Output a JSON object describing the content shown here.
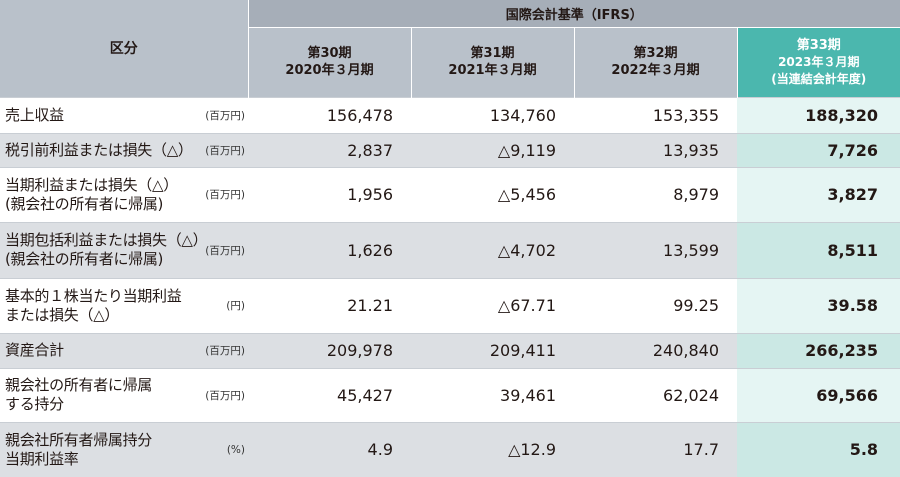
{
  "header": {
    "kubun": "区分",
    "ifrs": "国際会計基準（IFRS）",
    "periods": [
      {
        "l1": "第30期",
        "l2": "2020年３月期",
        "l3": ""
      },
      {
        "l1": "第31期",
        "l2": "2021年３月期",
        "l3": ""
      },
      {
        "l1": "第32期",
        "l2": "2022年３月期",
        "l3": ""
      },
      {
        "l1": "第33期",
        "l2": "2023年３月期",
        "l3": "(当連結会計年度)"
      }
    ]
  },
  "rows": [
    {
      "l1": "売上収益",
      "l2": "",
      "unit": "(百万円)",
      "v": [
        "156,478",
        "134,760",
        "153,355",
        "188,320"
      ]
    },
    {
      "l1": "税引前利益または損失（△）",
      "l2": "",
      "unit": "(百万円)",
      "v": [
        "2,837",
        "△9,119",
        "13,935",
        "7,726"
      ]
    },
    {
      "l1": "当期利益または損失（△）",
      "l2": "(親会社の所有者に帰属)",
      "unit": "(百万円)",
      "v": [
        "1,956",
        "△5,456",
        "8,979",
        "3,827"
      ]
    },
    {
      "l1": "当期包括利益または損失（△）",
      "l2": "(親会社の所有者に帰属)",
      "unit": "(百万円)",
      "v": [
        "1,626",
        "△4,702",
        "13,599",
        "8,511"
      ]
    },
    {
      "l1": "基本的１株当たり当期利益",
      "l2": "または損失（△）",
      "unit": "(円)",
      "v": [
        "21.21",
        "△67.71",
        "99.25",
        "39.58"
      ]
    },
    {
      "l1": "資産合計",
      "l2": "",
      "unit": "(百万円)",
      "v": [
        "209,978",
        "209,411",
        "240,840",
        "266,235"
      ]
    },
    {
      "l1": "親会社の所有者に帰属",
      "l2": "する持分",
      "unit": "(百万円)",
      "v": [
        "45,427",
        "39,461",
        "62,024",
        "69,566"
      ]
    },
    {
      "l1": "親会社所有者帰属持分",
      "l2": "当期利益率",
      "unit": "(%)",
      "v": [
        "4.9",
        "△12.9",
        "17.7",
        "5.8"
      ]
    }
  ]
}
